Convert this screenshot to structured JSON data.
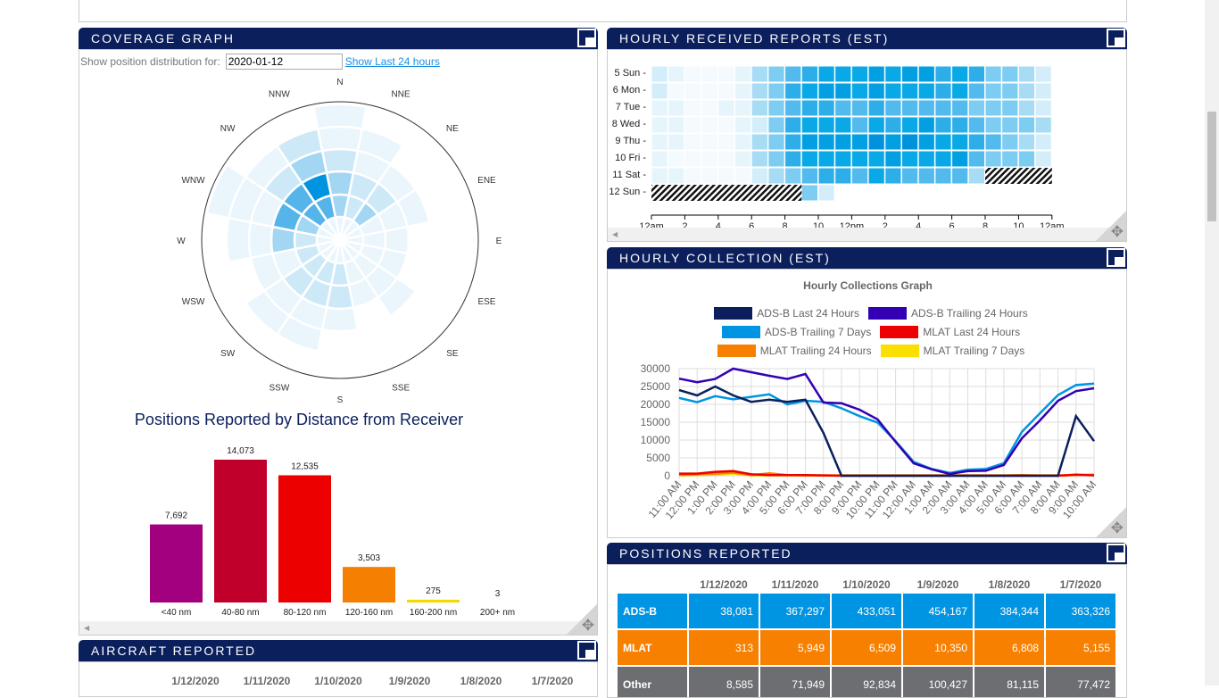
{
  "coverage": {
    "title": "COVERAGE GRAPH",
    "filter_label": "Show position distribution for:",
    "date_value": "2020-01-12",
    "last24_link": "Show Last 24 hours",
    "directions": [
      "N",
      "NNE",
      "NE",
      "ENE",
      "E",
      "ESE",
      "SE",
      "SSE",
      "S",
      "SSW",
      "SW",
      "WSW",
      "W",
      "WNW",
      "NW",
      "NNW"
    ],
    "intensity_by_direction_ring": [
      [
        1,
        3,
        3,
        2,
        1,
        1
      ],
      [
        1,
        2,
        2,
        1,
        1,
        0
      ],
      [
        1,
        3,
        2,
        1,
        0,
        0
      ],
      [
        1,
        1,
        1,
        1,
        0,
        0
      ],
      [
        1,
        1,
        1,
        0,
        0,
        0
      ],
      [
        1,
        1,
        1,
        0,
        0,
        0
      ],
      [
        1,
        1,
        1,
        1,
        0,
        0
      ],
      [
        1,
        1,
        1,
        0,
        0,
        0
      ],
      [
        1,
        2,
        2,
        1,
        0,
        0
      ],
      [
        1,
        2,
        2,
        1,
        1,
        0
      ],
      [
        1,
        2,
        2,
        1,
        1,
        0
      ],
      [
        1,
        2,
        1,
        1,
        0,
        0
      ],
      [
        1,
        2,
        3,
        1,
        1,
        0
      ],
      [
        1,
        3,
        4,
        1,
        1,
        1
      ],
      [
        1,
        4,
        4,
        2,
        1,
        0
      ],
      [
        1,
        4,
        5,
        3,
        2,
        0
      ]
    ],
    "colors": [
      "#ffffff",
      "#eaf5fc",
      "#cde9f8",
      "#a3d6f3",
      "#55b4ea",
      "#0093e0"
    ],
    "bar_title": "Positions Reported by Distance from Receiver",
    "chart_data": {
      "type": "bar",
      "categories": [
        "<40 nm",
        "40-80 nm",
        "80-120 nm",
        "120-160 nm",
        "160-200 nm",
        "200+ nm"
      ],
      "values": [
        7692,
        14073,
        12535,
        3503,
        275,
        3
      ],
      "value_labels": [
        "7,692",
        "14,073",
        "12,535",
        "3,503",
        "275",
        "3"
      ],
      "colors": [
        "#a3007f",
        "#c0002b",
        "#ec0000",
        "#f57f00",
        "#f5d800",
        "#f5d800"
      ]
    }
  },
  "hourly_received": {
    "title": "HOURLY RECEIVED REPORTS (EST)",
    "chart_data": {
      "type": "heatmap",
      "rows": [
        "5 Sun",
        "6 Mon",
        "7 Tue",
        "8 Wed",
        "9 Thu",
        "10 Fri",
        "11 Sat",
        "12 Sun"
      ],
      "x_ticks": [
        "12am",
        "2",
        "4",
        "6",
        "8",
        "10",
        "12pm",
        "2",
        "4",
        "6",
        "8",
        "10",
        "12am"
      ],
      "levels": [
        [
          2,
          1,
          0,
          0,
          0,
          1,
          3,
          4,
          5,
          6,
          7,
          7,
          7,
          8,
          7,
          8,
          8,
          6,
          7,
          6,
          4,
          4,
          3,
          2
        ],
        [
          2,
          0,
          0,
          0,
          0,
          1,
          3,
          4,
          6,
          7,
          8,
          8,
          7,
          8,
          7,
          7,
          7,
          6,
          7,
          5,
          4,
          4,
          3,
          2
        ],
        [
          1,
          1,
          0,
          0,
          1,
          1,
          3,
          4,
          5,
          6,
          6,
          5,
          5,
          6,
          5,
          5,
          5,
          5,
          5,
          4,
          4,
          4,
          3,
          2
        ],
        [
          1,
          1,
          0,
          0,
          0,
          1,
          2,
          4,
          6,
          7,
          7,
          7,
          5,
          7,
          6,
          7,
          8,
          6,
          6,
          5,
          4,
          4,
          4,
          3
        ],
        [
          1,
          1,
          0,
          0,
          0,
          1,
          3,
          4,
          6,
          8,
          8,
          8,
          8,
          9,
          8,
          9,
          8,
          7,
          7,
          6,
          5,
          4,
          3,
          2
        ],
        [
          1,
          0,
          0,
          0,
          0,
          1,
          3,
          4,
          6,
          7,
          7,
          7,
          7,
          7,
          8,
          7,
          7,
          7,
          8,
          5,
          4,
          4,
          4,
          2
        ],
        [
          1,
          1,
          0,
          0,
          0,
          0,
          2,
          3,
          4,
          5,
          6,
          6,
          5,
          7,
          6,
          5,
          5,
          5,
          5,
          3,
          -1,
          -1,
          -1,
          -1
        ],
        [
          -1,
          -1,
          -1,
          -1,
          -1,
          -1,
          -1,
          -1,
          -1,
          4,
          2,
          null,
          null,
          null,
          null,
          null,
          null,
          null,
          null,
          null,
          null,
          null,
          null,
          null
        ]
      ],
      "colors": [
        "#f4fafe",
        "#e6f5fc",
        "#d3eefa",
        "#a8dcf5",
        "#7dccf1",
        "#52baec",
        "#2eaee8",
        "#09a8e6",
        "#02a0e3",
        "#0092dd"
      ],
      "missing": "hatched"
    }
  },
  "hourly_collection": {
    "title": "HOURLY COLLECTION (EST)",
    "chart_data": {
      "type": "line",
      "title": "Hourly Collections Graph",
      "ylim": [
        0,
        30000
      ],
      "y_ticks": [
        0,
        5000,
        10000,
        15000,
        20000,
        25000,
        30000
      ],
      "grid": true,
      "legend": "top",
      "x": [
        "11:00 AM",
        "12:00 PM",
        "1:00 PM",
        "2:00 PM",
        "3:00 PM",
        "4:00 PM",
        "5:00 PM",
        "6:00 PM",
        "7:00 PM",
        "8:00 PM",
        "9:00 PM",
        "10:00 PM",
        "11:00 PM",
        "12:00 AM",
        "1:00 AM",
        "2:00 AM",
        "3:00 AM",
        "4:00 AM",
        "5:00 AM",
        "6:00 AM",
        "7:00 AM",
        "8:00 AM",
        "9:00 AM",
        "10:00 AM"
      ],
      "series": [
        {
          "name": "MLAT Trailing 7 Days",
          "color": "#fadf00",
          "values": [
            100,
            200,
            300,
            600,
            100,
            100,
            100,
            100,
            100,
            100,
            100,
            100,
            100,
            100,
            100,
            100,
            100,
            100,
            100,
            100,
            100,
            100,
            200,
            500
          ]
        },
        {
          "name": "MLAT Trailing 24 Hours",
          "color": "#f88000",
          "values": [
            200,
            400,
            600,
            900,
            200,
            700,
            200,
            100,
            100,
            100,
            100,
            100,
            100,
            100,
            100,
            100,
            100,
            100,
            100,
            200,
            100,
            100,
            200,
            200
          ]
        },
        {
          "name": "MLAT Last 24 Hours",
          "color": "#ee0000",
          "values": [
            600,
            600,
            1100,
            1300,
            400,
            200,
            200,
            200,
            100,
            0,
            0,
            0,
            0,
            0,
            0,
            0,
            0,
            0,
            0,
            0,
            0,
            0,
            300,
            100
          ]
        },
        {
          "name": "ADS-B Trailing 7 Days",
          "color": "#0095e2",
          "values": [
            21800,
            20600,
            22300,
            21400,
            22100,
            22800,
            20000,
            21000,
            20700,
            18900,
            16700,
            14900,
            9700,
            3900,
            1900,
            800,
            1700,
            1900,
            3500,
            12300,
            17500,
            22600,
            25400,
            25800
          ]
        },
        {
          "name": "ADS-B Trailing 24 Hours",
          "color": "#3300b3",
          "values": [
            27200,
            26200,
            27100,
            30000,
            29000,
            28000,
            27100,
            28500,
            20500,
            20300,
            18500,
            15800,
            9500,
            3500,
            1800,
            500,
            1300,
            1400,
            3000,
            10500,
            15500,
            21000,
            23700,
            24500
          ]
        },
        {
          "name": "ADS-B Last 24 Hours",
          "color": "#0b1f5c",
          "values": [
            24000,
            22500,
            25000,
            22500,
            20700,
            21300,
            20700,
            21300,
            12000,
            0,
            0,
            0,
            0,
            0,
            0,
            0,
            0,
            0,
            0,
            0,
            0,
            0,
            16700,
            9700
          ]
        }
      ],
      "legend_order": [
        "ADS-B Last 24 Hours",
        "ADS-B Trailing 24 Hours",
        "ADS-B Trailing 7 Days",
        "MLAT Last 24 Hours",
        "MLAT Trailing 24 Hours",
        "MLAT Trailing 7 Days"
      ]
    }
  },
  "positions_reported": {
    "title": "POSITIONS REPORTED",
    "dates": [
      "1/12/2020",
      "1/11/2020",
      "1/10/2020",
      "1/9/2020",
      "1/8/2020",
      "1/7/2020"
    ],
    "rows": [
      {
        "label": "ADS-B",
        "color": "#0095e2",
        "values": [
          "38,081",
          "367,297",
          "433,051",
          "454,167",
          "384,344",
          "363,326"
        ]
      },
      {
        "label": "MLAT",
        "color": "#f88000",
        "values": [
          "313",
          "5,949",
          "6,509",
          "10,350",
          "6,808",
          "5,155"
        ]
      },
      {
        "label": "Other",
        "color": "#6d6e72",
        "values": [
          "8,585",
          "71,949",
          "92,834",
          "100,427",
          "81,115",
          "77,472"
        ]
      }
    ]
  },
  "aircraft_reported": {
    "title": "AIRCRAFT REPORTED",
    "dates": [
      "1/12/2020",
      "1/11/2020",
      "1/10/2020",
      "1/9/2020",
      "1/8/2020",
      "1/7/2020"
    ]
  }
}
